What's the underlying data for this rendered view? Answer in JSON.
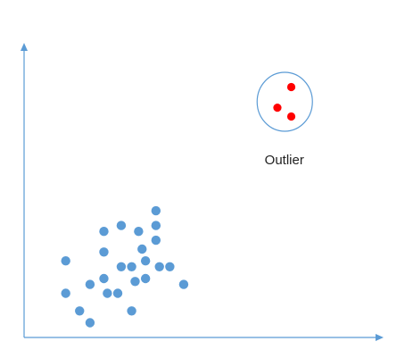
{
  "chart_data": {
    "type": "scatter",
    "title": "",
    "xlabel": "",
    "ylabel": "",
    "grid": false,
    "axis_ticks": false,
    "axis_color": "#5b9bd5",
    "xlim": [
      0,
      100
    ],
    "ylim": [
      0,
      100
    ],
    "series": [
      {
        "color": "#5b9bd5",
        "points": [
          {
            "x": 12,
            "y": 26
          },
          {
            "x": 12,
            "y": 15
          },
          {
            "x": 16,
            "y": 9
          },
          {
            "x": 19,
            "y": 5
          },
          {
            "x": 19,
            "y": 18
          },
          {
            "x": 23,
            "y": 29
          },
          {
            "x": 23,
            "y": 20
          },
          {
            "x": 23,
            "y": 36
          },
          {
            "x": 24,
            "y": 15
          },
          {
            "x": 27,
            "y": 15
          },
          {
            "x": 28,
            "y": 24
          },
          {
            "x": 28,
            "y": 38
          },
          {
            "x": 31,
            "y": 24
          },
          {
            "x": 31,
            "y": 9
          },
          {
            "x": 32,
            "y": 19
          },
          {
            "x": 34,
            "y": 30
          },
          {
            "x": 33,
            "y": 36
          },
          {
            "x": 35,
            "y": 26
          },
          {
            "x": 35,
            "y": 20
          },
          {
            "x": 38,
            "y": 38
          },
          {
            "x": 38,
            "y": 33
          },
          {
            "x": 38,
            "y": 43
          },
          {
            "x": 39,
            "y": 24
          },
          {
            "x": 42,
            "y": 24
          },
          {
            "x": 46,
            "y": 18
          }
        ]
      },
      {
        "color": "#ff0000",
        "points": [
          {
            "x": 77,
            "y": 85
          },
          {
            "x": 73,
            "y": 78
          },
          {
            "x": 77,
            "y": 75
          }
        ]
      }
    ],
    "annotations": [
      {
        "text": "Outlier",
        "target_series": 1,
        "shape": "ellipse",
        "stroke": "#5b9bd5"
      }
    ]
  }
}
